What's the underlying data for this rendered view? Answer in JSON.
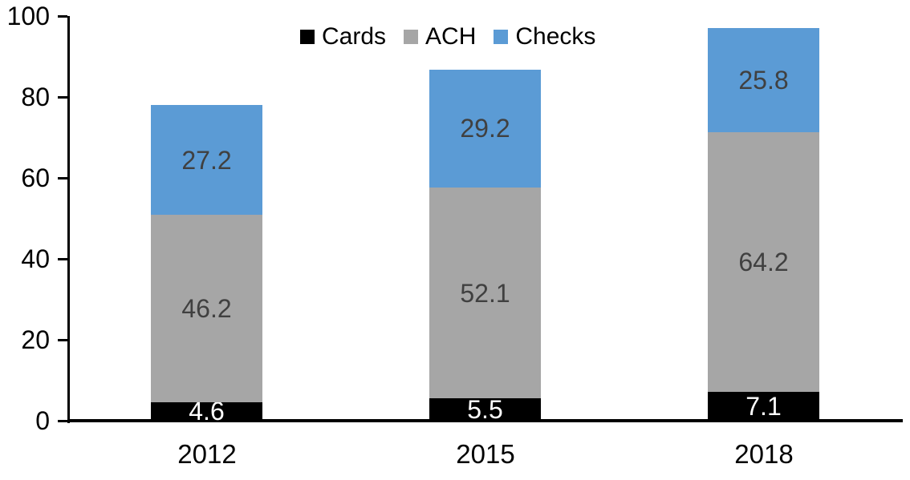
{
  "chart_data": {
    "type": "bar",
    "stacked": true,
    "title": "",
    "xlabel": "",
    "ylabel": "",
    "categories": [
      "2012",
      "2015",
      "2018"
    ],
    "series": [
      {
        "name": "Cards",
        "color": "#000000",
        "label_color": "#ffffff",
        "values": [
          4.6,
          5.5,
          7.1
        ]
      },
      {
        "name": "ACH",
        "color": "#A6A6A6",
        "label_color": "#404040",
        "values": [
          46.2,
          52.1,
          64.2
        ]
      },
      {
        "name": "Checks",
        "color": "#5B9BD5",
        "label_color": "#404040",
        "values": [
          27.2,
          29.2,
          25.8
        ]
      }
    ],
    "y_ticks": [
      0,
      20,
      40,
      60,
      80,
      100
    ],
    "ylim": [
      0,
      100
    ],
    "grid": false,
    "legend_position": "top-center",
    "axis_color": "#000000"
  }
}
